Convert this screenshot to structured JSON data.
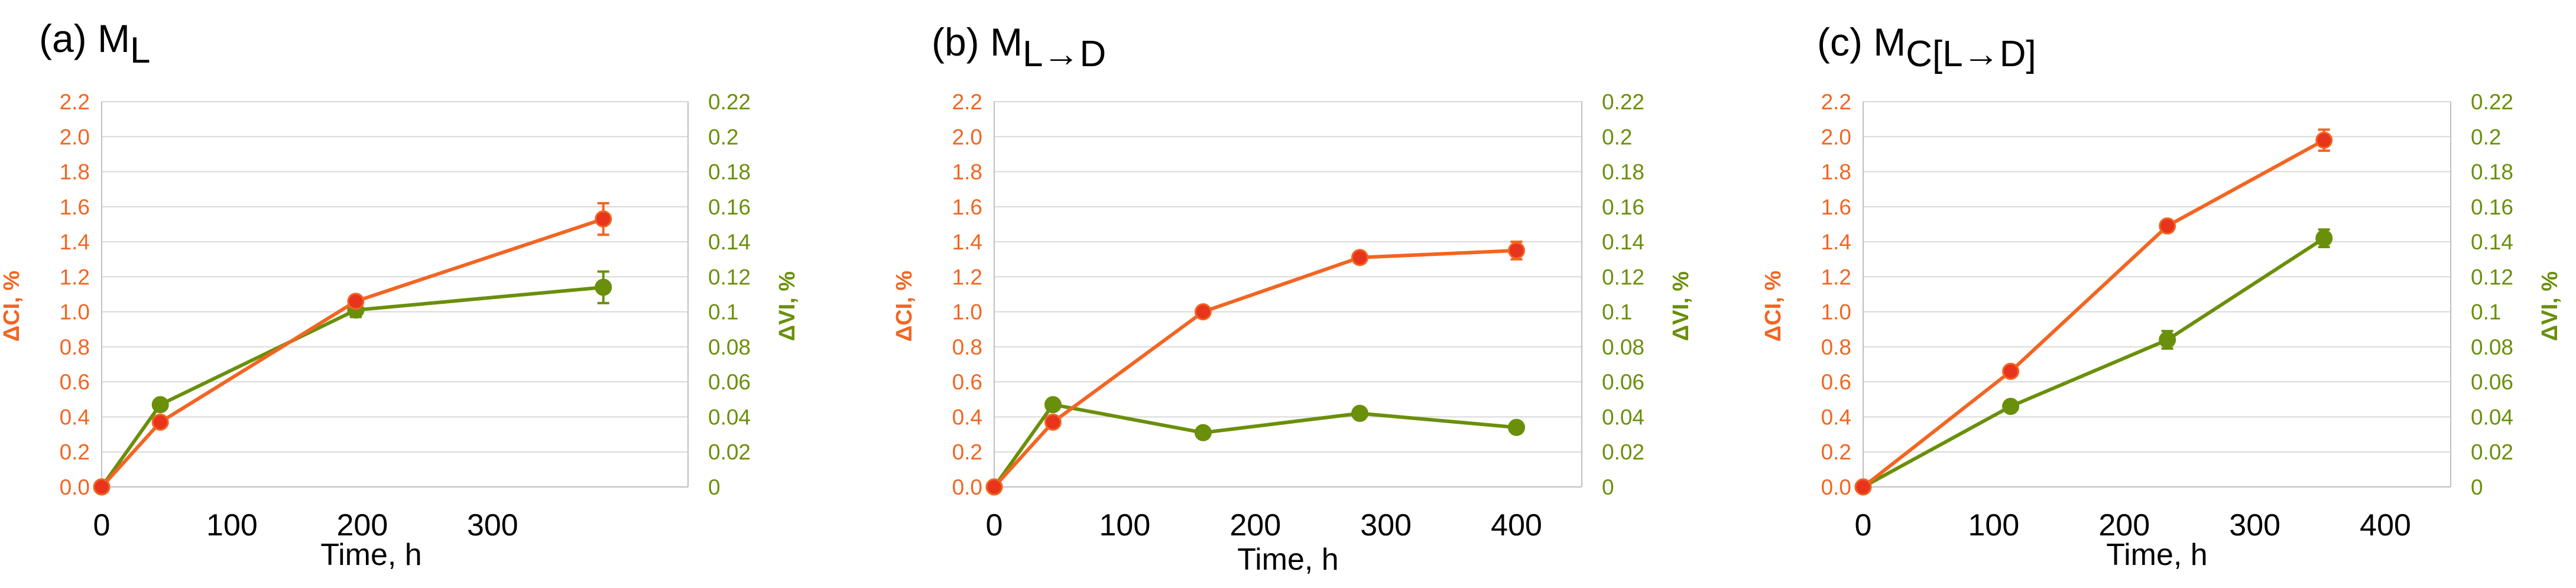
{
  "colors": {
    "ci": "#F26522",
    "ci_marker": "#E8341C",
    "vi": "#6A8F0A",
    "grid": "#D9D9D9",
    "axis": "#BFBFBF"
  },
  "chart_data": [
    {
      "type": "line",
      "panel_label": "(a) M",
      "panel_subscript": "L",
      "xlabel": "Time, h",
      "ylabel_left": "ΔCI, %",
      "ylabel_right": "ΔVI, %",
      "xlim": [
        0,
        450
      ],
      "xticks": [
        0,
        100,
        200,
        300
      ],
      "ylim_left": [
        0,
        2.2
      ],
      "yticks_left": [
        "0.0",
        "0.2",
        "0.4",
        "0.6",
        "0.8",
        "1.0",
        "1.2",
        "1.4",
        "1.6",
        "1.8",
        "2.0",
        "2.2"
      ],
      "ylim_right": [
        0,
        0.22
      ],
      "yticks_right": [
        "0",
        "0.02",
        "0.04",
        "0.06",
        "0.08",
        "0.1",
        "0.12",
        "0.14",
        "0.16",
        "0.18",
        "0.2",
        "0.22"
      ],
      "grid": true,
      "series": [
        {
          "name": "ΔCI, %",
          "axis": "left",
          "x": [
            0,
            45,
            195,
            385
          ],
          "y": [
            0.0,
            0.37,
            1.06,
            1.53
          ],
          "err": [
            0.0,
            0.02,
            0.03,
            0.09
          ]
        },
        {
          "name": "ΔVI, %",
          "axis": "right",
          "x": [
            0,
            45,
            195,
            385
          ],
          "y": [
            0.0,
            0.047,
            0.101,
            0.114
          ],
          "err": [
            0.0,
            0.002,
            0.004,
            0.009
          ]
        }
      ]
    },
    {
      "type": "line",
      "panel_label": "(b) M",
      "panel_subscript": "L→D",
      "xlabel": "Time, h",
      "ylabel_left": "ΔCI, %",
      "ylabel_right": "ΔVI, %",
      "xlim": [
        0,
        450
      ],
      "xticks": [
        0,
        100,
        200,
        300,
        400
      ],
      "ylim_left": [
        0,
        2.2
      ],
      "yticks_left": [
        "0.0",
        "0.2",
        "0.4",
        "0.6",
        "0.8",
        "1.0",
        "1.2",
        "1.4",
        "1.6",
        "1.8",
        "2.0",
        "2.2"
      ],
      "ylim_right": [
        0,
        0.22
      ],
      "yticks_right": [
        "0",
        "0.02",
        "0.04",
        "0.06",
        "0.08",
        "0.1",
        "0.12",
        "0.14",
        "0.16",
        "0.18",
        "0.2",
        "0.22"
      ],
      "grid": true,
      "series": [
        {
          "name": "ΔCI, %",
          "axis": "left",
          "x": [
            0,
            45,
            160,
            280,
            400
          ],
          "y": [
            0.0,
            0.37,
            1.0,
            1.31,
            1.35
          ],
          "err": [
            0.0,
            0.02,
            0.02,
            0.03,
            0.05
          ]
        },
        {
          "name": "ΔVI, %",
          "axis": "right",
          "x": [
            0,
            45,
            160,
            280,
            400
          ],
          "y": [
            0.0,
            0.047,
            0.031,
            0.042,
            0.034
          ],
          "err": [
            0.0,
            0.002,
            0.002,
            0.002,
            0.002
          ]
        }
      ]
    },
    {
      "type": "line",
      "panel_label": "(c) M",
      "panel_subscript": "C[L→D]",
      "xlabel": "Time, h",
      "ylabel_left": "ΔCI, %",
      "ylabel_right": "ΔVI, %",
      "xlim": [
        0,
        450
      ],
      "xticks": [
        0,
        100,
        200,
        300,
        400
      ],
      "ylim_left": [
        0,
        2.2
      ],
      "yticks_left": [
        "0.0",
        "0.2",
        "0.4",
        "0.6",
        "0.8",
        "1.0",
        "1.2",
        "1.4",
        "1.6",
        "1.8",
        "2.0",
        "2.2"
      ],
      "ylim_right": [
        0,
        0.22
      ],
      "yticks_right": [
        "0",
        "0.02",
        "0.04",
        "0.06",
        "0.08",
        "0.1",
        "0.12",
        "0.14",
        "0.16",
        "0.18",
        "0.2",
        "0.22"
      ],
      "grid": true,
      "series": [
        {
          "name": "ΔCI, %",
          "axis": "left",
          "x": [
            0,
            113,
            233,
            353
          ],
          "y": [
            0.0,
            0.66,
            1.49,
            1.98
          ],
          "err": [
            0.0,
            0.02,
            0.03,
            0.06
          ]
        },
        {
          "name": "ΔVI, %",
          "axis": "right",
          "x": [
            0,
            113,
            233,
            353
          ],
          "y": [
            0.0,
            0.046,
            0.084,
            0.142
          ],
          "err": [
            0.0,
            0.002,
            0.005,
            0.005
          ]
        }
      ]
    }
  ]
}
